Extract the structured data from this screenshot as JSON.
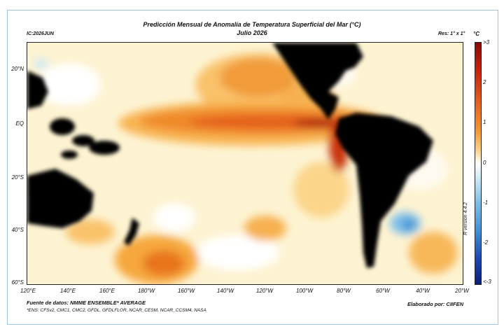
{
  "title_line1": "Predicción Mensual de Anomalía de Temperatura Superficial del Mar (°C)",
  "title_line2": "Julio 2026",
  "ic_label": "IC:2026JUN",
  "resolution": "Res: 1° x 1°",
  "unit": "°C",
  "lat_labels": [
    "20°N",
    "EQ",
    "20°S",
    "40°S",
    "60°S"
  ],
  "lon_labels": [
    "120°E",
    "140°E",
    "160°E",
    "180°W",
    "160°W",
    "140°W",
    "120°W",
    "100°W",
    "80°W",
    "60°W",
    "40°W",
    "20°W"
  ],
  "colorbar_labels": [
    ">3",
    "2",
    "1",
    "0",
    "-1",
    "-2",
    "<-3"
  ],
  "version": "R version 4.4.2",
  "source": "Fuente de datos: NMME ENSEMBLE* AVERAGE",
  "ens_note": "*ENS: CFSv2, CMC1, CMC2, GFDL, GFDLFLOR, NCAR_CESM, NCAR_CCSM4, NASA",
  "credit": "Elaborado por: CIIFEN",
  "colors": {
    "land": "#000000",
    "neutral": "#ffffff",
    "warm_light": "#fde8a8",
    "warm_mid": "#f6a73c",
    "warm_strong": "#e4611c",
    "warm_extreme": "#9c1208",
    "cool_light": "#cfe9f5",
    "cool_mid": "#4aa0dc",
    "cool_strong": "#1330a8"
  }
}
